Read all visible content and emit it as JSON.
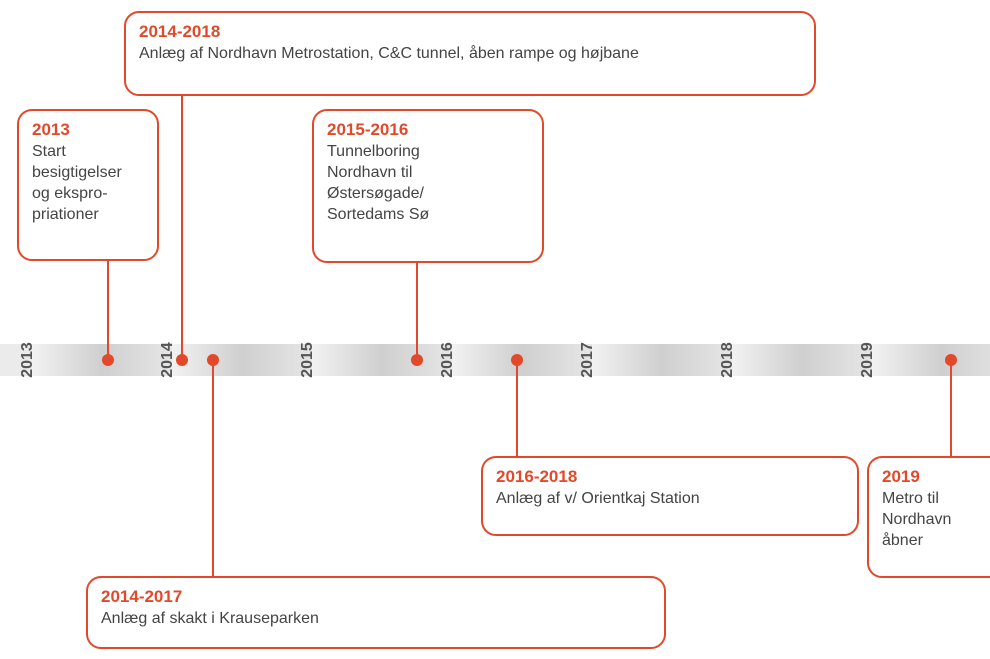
{
  "years": [
    "2013",
    "2014",
    "2015",
    "2016",
    "2017",
    "2018",
    "2019"
  ],
  "events": [
    {
      "title": "2013",
      "lines": [
        "Start",
        "besigtigelser",
        "og ekspro-",
        "priationer"
      ]
    },
    {
      "title": "2014-2018",
      "lines": [
        "Anlæg af Nordhavn Metrostation, C&C tunnel, åben rampe og højbane"
      ]
    },
    {
      "title": "2015-2016",
      "lines": [
        "Tunnelboring",
        "Nordhavn til",
        "Østersøgade/",
        "Sortedams Sø"
      ]
    },
    {
      "title": "2016-2018",
      "lines": [
        "Anlæg af v/ Orientkaj Station"
      ]
    },
    {
      "title": "2019",
      "lines": [
        "Metro til",
        "Nordhavn",
        "åbner"
      ]
    },
    {
      "title": "2014-2017",
      "lines": [
        "Anlæg af skakt i Krauseparken"
      ]
    }
  ]
}
